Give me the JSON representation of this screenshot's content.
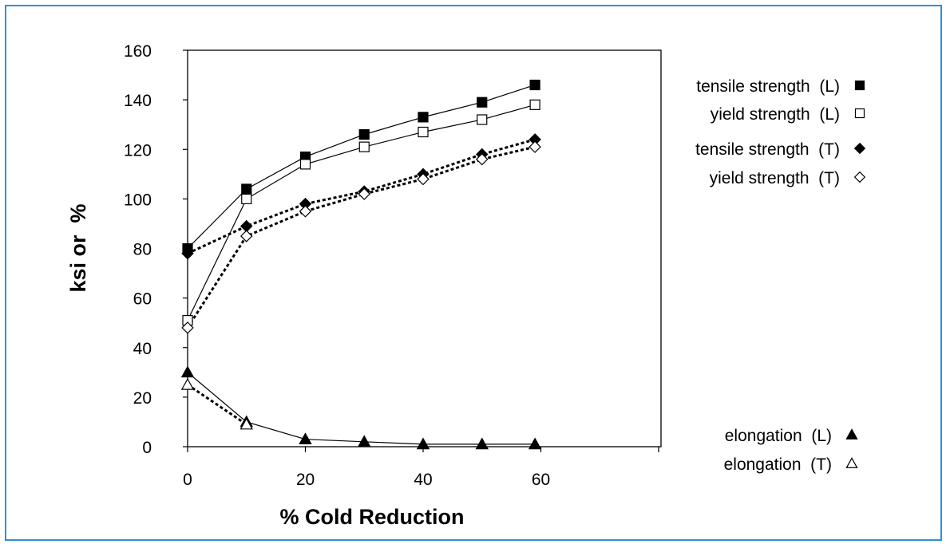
{
  "chart_data": {
    "type": "line",
    "xlabel": "% Cold Reduction",
    "ylabel": "ksi or  %",
    "xlim": [
      0,
      80
    ],
    "ylim": [
      0,
      160
    ],
    "x_ticks": [
      "0",
      "20",
      "40",
      "60"
    ],
    "y_ticks": [
      "0",
      "20",
      "40",
      "60",
      "80",
      "100",
      "120",
      "140",
      "160"
    ],
    "grid": false,
    "legend_position": "right",
    "series": [
      {
        "name": "tensile strength  (L)",
        "marker": "square-filled",
        "line_style": "solid",
        "x": [
          0,
          10,
          20,
          30,
          40,
          50,
          59
        ],
        "y": [
          80,
          104,
          117,
          126,
          133,
          139,
          146
        ]
      },
      {
        "name": "yield strength  (L)",
        "marker": "square-open",
        "line_style": "solid",
        "x": [
          0,
          10,
          20,
          30,
          40,
          50,
          59
        ],
        "y": [
          51,
          100,
          114,
          121,
          127,
          132,
          138
        ]
      },
      {
        "name": "tensile strength  (T)",
        "marker": "diamond-filled",
        "line_style": "dotted",
        "x": [
          0,
          10,
          20,
          30,
          40,
          50,
          59
        ],
        "y": [
          78,
          89,
          98,
          103,
          110,
          118,
          124
        ]
      },
      {
        "name": "yield strength  (T)",
        "marker": "diamond-open",
        "line_style": "dotted",
        "x": [
          0,
          10,
          20,
          30,
          40,
          50,
          59
        ],
        "y": [
          48,
          85,
          95,
          102,
          108,
          116,
          121
        ]
      },
      {
        "name": "elongation  (L)",
        "marker": "triangle-filled",
        "line_style": "solid",
        "x": [
          0,
          10,
          20,
          30,
          40,
          50,
          59
        ],
        "y": [
          30,
          10,
          3,
          2,
          1,
          1,
          1
        ]
      },
      {
        "name": "elongation  (T)",
        "marker": "triangle-open",
        "line_style": "dotted",
        "x": [
          0,
          10
        ],
        "y": [
          25,
          9
        ]
      }
    ]
  }
}
